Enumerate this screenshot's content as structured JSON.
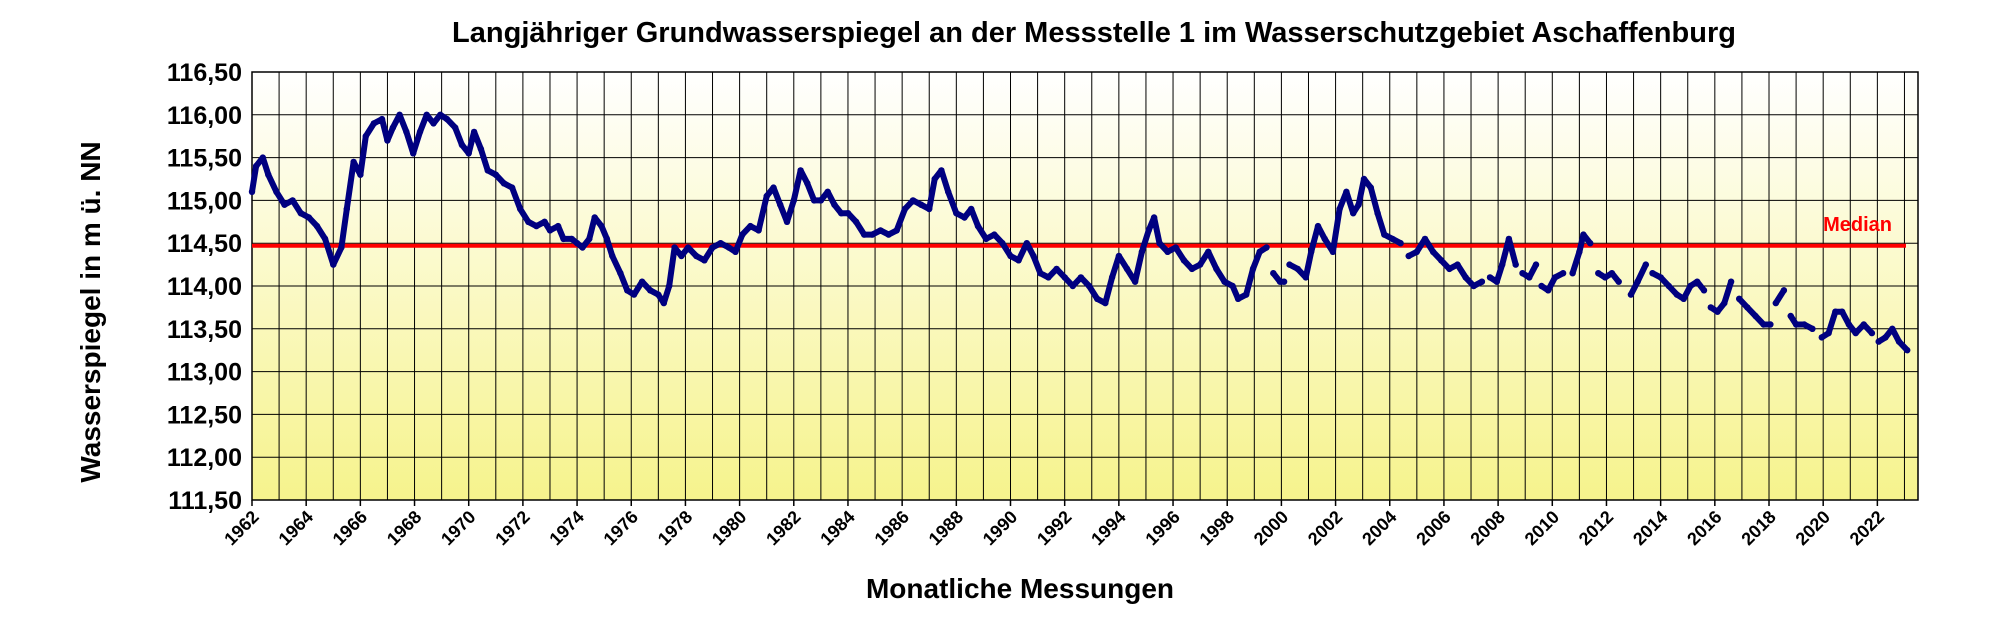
{
  "chart_data": {
    "type": "line",
    "title": "Langjähriger Grundwasserspiegel an der Messstelle 1 im Wasserschutzgebiet Aschaffenburg",
    "xlabel": "Monatliche Messungen",
    "ylabel": "Wasserspiegel in m ü. NN",
    "xlim": [
      1962,
      2023.5
    ],
    "ylim": [
      111.5,
      116.5
    ],
    "yticks": [
      "111,50",
      "112,00",
      "112,50",
      "113,00",
      "113,50",
      "114,00",
      "114,50",
      "115,00",
      "115,50",
      "116,00",
      "116,50"
    ],
    "xticks": [
      "1962",
      "1964",
      "1966",
      "1968",
      "1970",
      "1972",
      "1974",
      "1976",
      "1978",
      "1980",
      "1982",
      "1984",
      "1986",
      "1988",
      "1990",
      "1992",
      "1994",
      "1996",
      "1998",
      "2000",
      "2002",
      "2004",
      "2006",
      "2008",
      "2010",
      "2012",
      "2014",
      "2016",
      "2018",
      "2020",
      "2022"
    ],
    "grid": true,
    "median": {
      "label": "Median",
      "value": 114.47,
      "color": "#ff0000"
    },
    "series": [
      {
        "color": "#000080",
        "segments": [
          [
            [
              1962.0,
              115.1
            ],
            [
              1962.15,
              115.4
            ],
            [
              1962.4,
              115.5
            ],
            [
              1962.6,
              115.3
            ],
            [
              1962.9,
              115.1
            ],
            [
              1963.2,
              114.95
            ],
            [
              1963.5,
              115.0
            ],
            [
              1963.8,
              114.85
            ],
            [
              1964.1,
              114.8
            ],
            [
              1964.4,
              114.7
            ],
            [
              1964.7,
              114.55
            ],
            [
              1965.0,
              114.25
            ],
            [
              1965.3,
              114.45
            ],
            [
              1965.5,
              114.9
            ],
            [
              1965.75,
              115.45
            ],
            [
              1966.0,
              115.3
            ],
            [
              1966.2,
              115.75
            ],
            [
              1966.5,
              115.9
            ],
            [
              1966.8,
              115.95
            ],
            [
              1967.0,
              115.7
            ],
            [
              1967.2,
              115.85
            ],
            [
              1967.45,
              116.0
            ],
            [
              1967.7,
              115.8
            ],
            [
              1967.95,
              115.55
            ],
            [
              1968.2,
              115.8
            ],
            [
              1968.45,
              116.0
            ],
            [
              1968.7,
              115.9
            ],
            [
              1968.95,
              116.0
            ],
            [
              1969.2,
              115.95
            ],
            [
              1969.5,
              115.85
            ],
            [
              1969.75,
              115.65
            ],
            [
              1970.0,
              115.55
            ],
            [
              1970.2,
              115.8
            ],
            [
              1970.45,
              115.6
            ],
            [
              1970.7,
              115.35
            ],
            [
              1971.0,
              115.3
            ],
            [
              1971.3,
              115.2
            ],
            [
              1971.6,
              115.15
            ],
            [
              1971.9,
              114.9
            ],
            [
              1972.2,
              114.75
            ],
            [
              1972.5,
              114.7
            ],
            [
              1972.8,
              114.75
            ],
            [
              1973.0,
              114.65
            ],
            [
              1973.3,
              114.7
            ],
            [
              1973.5,
              114.55
            ],
            [
              1973.8,
              114.55
            ],
            [
              1974.0,
              114.5
            ],
            [
              1974.2,
              114.45
            ],
            [
              1974.45,
              114.55
            ],
            [
              1974.65,
              114.8
            ],
            [
              1974.9,
              114.7
            ],
            [
              1975.1,
              114.55
            ],
            [
              1975.3,
              114.35
            ],
            [
              1975.6,
              114.15
            ],
            [
              1975.85,
              113.95
            ],
            [
              1976.1,
              113.9
            ],
            [
              1976.4,
              114.05
            ],
            [
              1976.7,
              113.95
            ],
            [
              1977.0,
              113.9
            ],
            [
              1977.2,
              113.8
            ],
            [
              1977.4,
              114.0
            ],
            [
              1977.6,
              114.45
            ],
            [
              1977.85,
              114.35
            ],
            [
              1978.1,
              114.45
            ],
            [
              1978.4,
              114.35
            ],
            [
              1978.7,
              114.3
            ],
            [
              1979.0,
              114.45
            ],
            [
              1979.3,
              114.5
            ],
            [
              1979.6,
              114.45
            ],
            [
              1979.85,
              114.4
            ],
            [
              1980.1,
              114.6
            ],
            [
              1980.4,
              114.7
            ],
            [
              1980.7,
              114.65
            ],
            [
              1981.0,
              115.05
            ],
            [
              1981.25,
              115.15
            ],
            [
              1981.5,
              114.95
            ],
            [
              1981.75,
              114.75
            ],
            [
              1982.0,
              115.0
            ],
            [
              1982.25,
              115.35
            ],
            [
              1982.5,
              115.2
            ],
            [
              1982.75,
              115.0
            ],
            [
              1983.0,
              115.0
            ],
            [
              1983.25,
              115.1
            ],
            [
              1983.5,
              114.95
            ],
            [
              1983.75,
              114.85
            ],
            [
              1984.0,
              114.85
            ],
            [
              1984.3,
              114.75
            ],
            [
              1984.6,
              114.6
            ],
            [
              1984.9,
              114.6
            ],
            [
              1985.2,
              114.65
            ],
            [
              1985.5,
              114.6
            ],
            [
              1985.8,
              114.65
            ],
            [
              1986.1,
              114.9
            ],
            [
              1986.4,
              115.0
            ],
            [
              1986.7,
              114.95
            ],
            [
              1987.0,
              114.9
            ],
            [
              1987.2,
              115.25
            ],
            [
              1987.45,
              115.35
            ],
            [
              1987.7,
              115.1
            ],
            [
              1988.0,
              114.85
            ],
            [
              1988.3,
              114.8
            ],
            [
              1988.55,
              114.9
            ],
            [
              1988.8,
              114.7
            ],
            [
              1989.1,
              114.55
            ],
            [
              1989.4,
              114.6
            ],
            [
              1989.7,
              114.5
            ],
            [
              1990.0,
              114.35
            ],
            [
              1990.3,
              114.3
            ],
            [
              1990.6,
              114.5
            ],
            [
              1990.85,
              114.35
            ],
            [
              1991.1,
              114.15
            ],
            [
              1991.4,
              114.1
            ],
            [
              1991.7,
              114.2
            ],
            [
              1992.0,
              114.1
            ],
            [
              1992.3,
              114.0
            ],
            [
              1992.6,
              114.1
            ],
            [
              1992.9,
              114.0
            ],
            [
              1993.2,
              113.85
            ],
            [
              1993.5,
              113.8
            ],
            [
              1993.75,
              114.1
            ],
            [
              1994.0,
              114.35
            ],
            [
              1994.3,
              114.2
            ],
            [
              1994.6,
              114.05
            ],
            [
              1994.85,
              114.4
            ],
            [
              1995.1,
              114.65
            ],
            [
              1995.3,
              114.8
            ],
            [
              1995.5,
              114.5
            ],
            [
              1995.8,
              114.4
            ],
            [
              1996.1,
              114.45
            ],
            [
              1996.4,
              114.3
            ],
            [
              1996.7,
              114.2
            ],
            [
              1997.0,
              114.25
            ],
            [
              1997.3,
              114.4
            ],
            [
              1997.6,
              114.2
            ],
            [
              1997.9,
              114.05
            ],
            [
              1998.2,
              114.0
            ],
            [
              1998.4,
              113.85
            ],
            [
              1998.7,
              113.9
            ],
            [
              1998.95,
              114.2
            ],
            [
              1999.2,
              114.4
            ],
            [
              1999.45,
              114.45
            ]
          ],
          [
            [
              1999.7,
              114.15
            ],
            [
              1999.95,
              114.05
            ],
            [
              2000.1,
              114.05
            ]
          ],
          [
            [
              2000.3,
              114.25
            ],
            [
              2000.6,
              114.2
            ],
            [
              2000.9,
              114.1
            ],
            [
              2001.1,
              114.4
            ],
            [
              2001.35,
              114.7
            ],
            [
              2001.6,
              114.55
            ],
            [
              2001.9,
              114.4
            ],
            [
              2002.15,
              114.9
            ],
            [
              2002.4,
              115.1
            ],
            [
              2002.65,
              114.85
            ],
            [
              2002.85,
              114.95
            ],
            [
              2003.05,
              115.25
            ],
            [
              2003.3,
              115.15
            ],
            [
              2003.55,
              114.85
            ],
            [
              2003.8,
              114.6
            ],
            [
              2004.1,
              114.55
            ],
            [
              2004.4,
              114.5
            ]
          ],
          [
            [
              2004.7,
              114.35
            ],
            [
              2005.0,
              114.4
            ],
            [
              2005.3,
              114.55
            ],
            [
              2005.6,
              114.4
            ],
            [
              2005.9,
              114.3
            ],
            [
              2006.2,
              114.2
            ],
            [
              2006.5,
              114.25
            ],
            [
              2006.8,
              114.1
            ],
            [
              2007.1,
              114.0
            ],
            [
              2007.4,
              114.05
            ]
          ],
          [
            [
              2007.7,
              114.1
            ],
            [
              2007.95,
              114.05
            ],
            [
              2008.15,
              114.25
            ],
            [
              2008.4,
              114.55
            ],
            [
              2008.65,
              114.25
            ]
          ],
          [
            [
              2008.9,
              114.15
            ],
            [
              2009.15,
              114.1
            ],
            [
              2009.4,
              114.25
            ]
          ],
          [
            [
              2009.6,
              114.0
            ],
            [
              2009.85,
              113.95
            ],
            [
              2010.1,
              114.1
            ],
            [
              2010.4,
              114.15
            ]
          ],
          [
            [
              2010.75,
              114.15
            ],
            [
              2011.0,
              114.4
            ],
            [
              2011.15,
              114.6
            ],
            [
              2011.4,
              114.5
            ]
          ],
          [
            [
              2011.7,
              114.15
            ],
            [
              2011.95,
              114.1
            ],
            [
              2012.2,
              114.15
            ],
            [
              2012.45,
              114.05
            ]
          ],
          [
            [
              2012.9,
              113.9
            ],
            [
              2013.15,
              114.05
            ],
            [
              2013.45,
              114.25
            ]
          ],
          [
            [
              2013.7,
              114.15
            ],
            [
              2014.0,
              114.1
            ],
            [
              2014.3,
              114.0
            ],
            [
              2014.6,
              113.9
            ],
            [
              2014.85,
              113.85
            ],
            [
              2015.1,
              114.0
            ],
            [
              2015.35,
              114.05
            ],
            [
              2015.6,
              113.95
            ]
          ],
          [
            [
              2015.85,
              113.75
            ],
            [
              2016.1,
              113.7
            ],
            [
              2016.35,
              113.8
            ],
            [
              2016.6,
              114.05
            ]
          ],
          [
            [
              2016.9,
              113.85
            ],
            [
              2017.2,
              113.75
            ],
            [
              2017.5,
              113.65
            ],
            [
              2017.8,
              113.55
            ],
            [
              2018.05,
              113.55
            ]
          ],
          [
            [
              2018.25,
              113.8
            ],
            [
              2018.55,
              113.95
            ]
          ],
          [
            [
              2018.8,
              113.65
            ],
            [
              2019.0,
              113.55
            ],
            [
              2019.3,
              113.55
            ],
            [
              2019.6,
              113.5
            ]
          ],
          [
            [
              2019.95,
              113.4
            ],
            [
              2020.2,
              113.45
            ],
            [
              2020.45,
              113.7
            ],
            [
              2020.7,
              113.7
            ],
            [
              2020.95,
              113.55
            ],
            [
              2021.2,
              113.45
            ],
            [
              2021.5,
              113.55
            ],
            [
              2021.8,
              113.45
            ]
          ],
          [
            [
              2022.05,
              113.35
            ],
            [
              2022.3,
              113.4
            ],
            [
              2022.55,
              113.5
            ],
            [
              2022.8,
              113.35
            ],
            [
              2023.1,
              113.25
            ]
          ]
        ]
      }
    ]
  }
}
